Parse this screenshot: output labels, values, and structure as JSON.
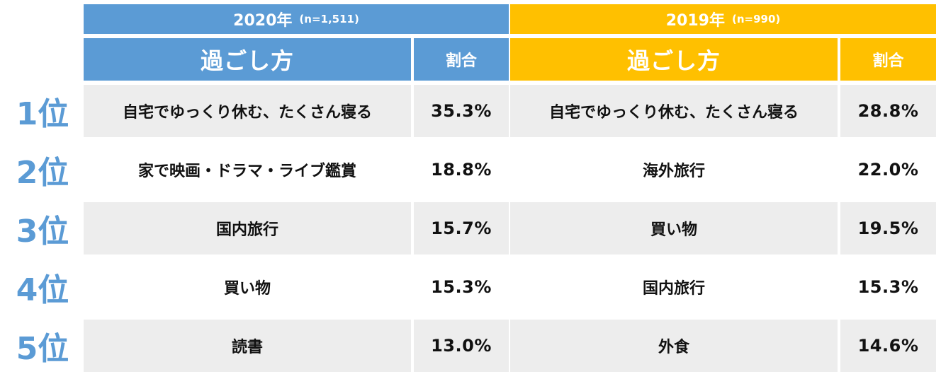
{
  "years": [
    {
      "label": "2020年",
      "n": "(n=1,511)",
      "color": "#5b9bd5"
    },
    {
      "label": "2019年",
      "n": "(n=990)",
      "color": "#ffc000"
    }
  ],
  "headers": {
    "method": "過ごし方",
    "ratio": "割合"
  },
  "ranks": [
    "1位",
    "2位",
    "3位",
    "4位",
    "5位"
  ],
  "chart_data": {
    "type": "table",
    "columns": [
      "過ごし方",
      "割合"
    ],
    "groups": [
      {
        "year": "2020年",
        "n": "(n=1,511)",
        "rows": [
          {
            "rank": "1位",
            "method": "自宅でゆっくり休む、たくさん寝る",
            "ratio": "35.3%"
          },
          {
            "rank": "2位",
            "method": "家で映画・ドラマ・ライブ鑑賞",
            "ratio": "18.8%"
          },
          {
            "rank": "3位",
            "method": "国内旅行",
            "ratio": "15.7%"
          },
          {
            "rank": "4位",
            "method": "買い物",
            "ratio": "15.3%"
          },
          {
            "rank": "5位",
            "method": "読書",
            "ratio": "13.0%"
          }
        ]
      },
      {
        "year": "2019年",
        "n": "(n=990)",
        "rows": [
          {
            "rank": "1位",
            "method": "自宅でゆっくり休む、たくさん寝る",
            "ratio": "28.8%"
          },
          {
            "rank": "2位",
            "method": "海外旅行",
            "ratio": "22.0%"
          },
          {
            "rank": "3位",
            "method": "買い物",
            "ratio": "19.5%"
          },
          {
            "rank": "4位",
            "method": "国内旅行",
            "ratio": "15.3%"
          },
          {
            "rank": "5位",
            "method": "外食",
            "ratio": "14.6%"
          }
        ]
      }
    ]
  }
}
